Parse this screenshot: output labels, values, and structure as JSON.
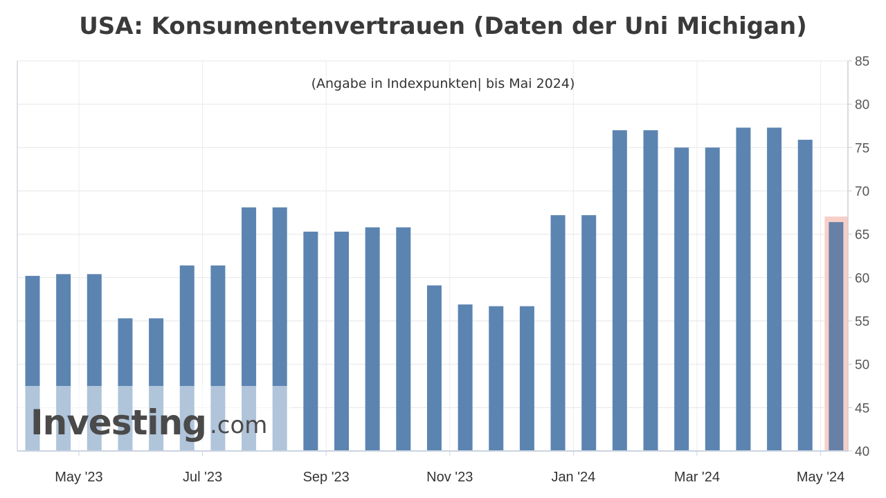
{
  "title": "USA: Konsumentenvertrauen (Daten der Uni Michigan)",
  "chart_data": {
    "type": "bar",
    "title": "USA: Konsumentenvertrauen (Daten der Uni Michigan)",
    "subtitle": "(Angabe in Indexpunkten| bis Mai 2024)",
    "xlabel": "",
    "ylabel": "",
    "ylim": [
      40,
      85
    ],
    "y_ticks": [
      40,
      45,
      50,
      55,
      60,
      65,
      70,
      75,
      80,
      85
    ],
    "x_tick_labels": [
      "May '23",
      "Jul '23",
      "Sep '23",
      "Nov '23",
      "Jan '24",
      "Mar '24",
      "May '24"
    ],
    "x_tick_label_bar_index": [
      1.5,
      5.5,
      9.5,
      13.5,
      17.5,
      21.5,
      25.5
    ],
    "values": [
      60.2,
      60.4,
      60.4,
      55.3,
      55.3,
      61.4,
      61.4,
      68.1,
      68.1,
      65.3,
      65.3,
      65.8,
      65.8,
      59.1,
      56.9,
      56.7,
      56.7,
      67.2,
      67.2,
      77.0,
      77.0,
      75.0,
      75.0,
      77.3,
      77.3,
      75.9,
      66.4
    ],
    "highlighted_bar_index": 26,
    "grid": true,
    "legend": "none",
    "y_axis_position": "right",
    "bar_color": "#5b84b1",
    "highlight_color": "#f7cfc8",
    "highlight_bar_color": "#6680a6"
  },
  "watermark": {
    "brand": "Investing",
    "suffix": ".com"
  }
}
